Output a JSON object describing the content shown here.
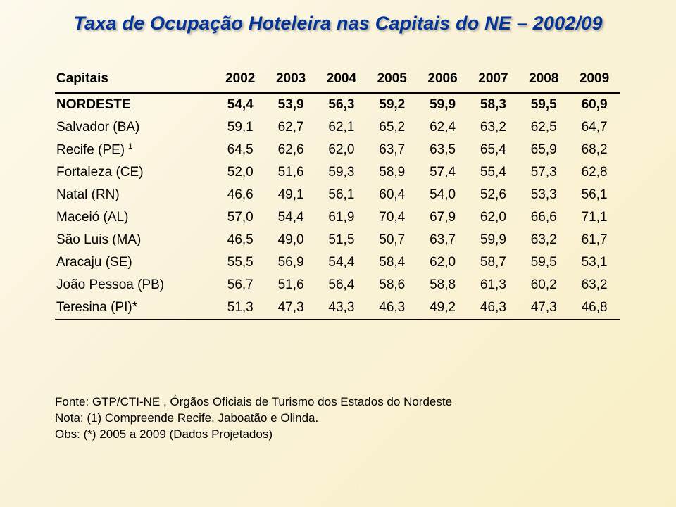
{
  "title": "Taxa de Ocupação Hoteleira nas Capitais do NE – 2002/09",
  "table": {
    "header_label": "Capitais",
    "years": [
      "2002",
      "2003",
      "2004",
      "2005",
      "2006",
      "2007",
      "2008",
      "2009"
    ],
    "rows": [
      {
        "label": "NORDESTE",
        "bold": true,
        "values": [
          "54,4",
          "53,9",
          "56,3",
          "59,2",
          "59,9",
          "58,3",
          "59,5",
          "60,9"
        ]
      },
      {
        "label": "Salvador (BA)",
        "values": [
          "59,1",
          "62,7",
          "62,1",
          "65,2",
          "62,4",
          "63,2",
          "62,5",
          "64,7"
        ]
      },
      {
        "label": "Recife (PE)",
        "sup": "1",
        "values": [
          "64,5",
          "62,6",
          "62,0",
          "63,7",
          "63,5",
          "65,4",
          "65,9",
          "68,2"
        ]
      },
      {
        "label": "Fortaleza (CE)",
        "values": [
          "52,0",
          "51,6",
          "59,3",
          "58,9",
          "57,4",
          "55,4",
          "57,3",
          "62,8"
        ]
      },
      {
        "label": "Natal (RN)",
        "values": [
          "46,6",
          "49,1",
          "56,1",
          "60,4",
          "54,0",
          "52,6",
          "53,3",
          "56,1"
        ]
      },
      {
        "label": "Maceió (AL)",
        "values": [
          "57,0",
          "54,4",
          "61,9",
          "70,4",
          "67,9",
          "62,0",
          "66,6",
          "71,1"
        ]
      },
      {
        "label": "São Luis (MA)",
        "values": [
          "46,5",
          "49,0",
          "51,5",
          "50,7",
          "63,7",
          "59,9",
          "63,2",
          "61,7"
        ]
      },
      {
        "label": "Aracaju (SE)",
        "values": [
          "55,5",
          "56,9",
          "54,4",
          "58,4",
          "62,0",
          "58,7",
          "59,5",
          "53,1"
        ]
      },
      {
        "label": "João Pessoa (PB)",
        "values": [
          "56,7",
          "51,6",
          "56,4",
          "58,6",
          "58,8",
          "61,3",
          "60,2",
          "63,2"
        ]
      },
      {
        "label": "Teresina (PI)*",
        "values": [
          "51,3",
          "47,3",
          "43,3",
          "46,3",
          "49,2",
          "46,3",
          "47,3",
          "46,8"
        ]
      }
    ]
  },
  "footnotes": {
    "line1": "Fonte: GTP/CTI-NE , Órgãos Oficiais de Turismo dos Estados do Nordeste",
    "line2": "Nota: (1) Compreende Recife, Jaboatão e Olinda.",
    "line3": "Obs: (*) 2005 a 2009 (Dados Projetados)"
  },
  "colors": {
    "title_color": "#003399",
    "text_color": "#000000",
    "bg_start": "#fdf9ec",
    "bg_end": "#f9efc7",
    "rule_color": "#000000"
  },
  "typography": {
    "title_fontsize": 27,
    "body_fontsize": 19,
    "footnote_fontsize": 17,
    "title_style": "bold italic"
  }
}
